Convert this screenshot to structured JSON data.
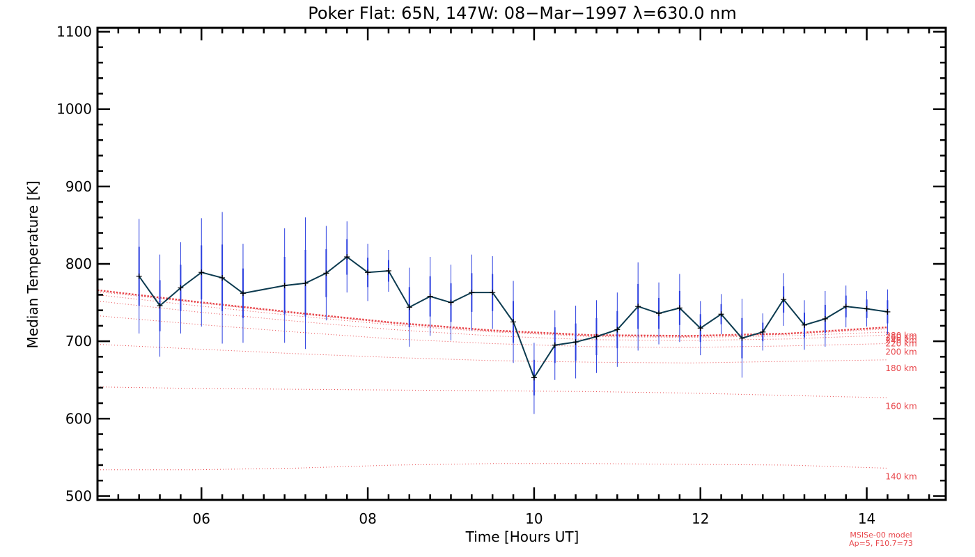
{
  "chart_data": {
    "type": "line",
    "title": "Poker Flat: 65N, 147W: 08−Mar−1997 λ=630.0 nm",
    "xlabel": "Time [Hours UT]",
    "ylabel": "Median Temperature [K]",
    "xlim": [
      4.75,
      14.95
    ],
    "ylim": [
      495,
      1105
    ],
    "x_ticks": [
      6,
      8,
      10,
      12,
      14
    ],
    "x_tick_labels": [
      "06",
      "08",
      "10",
      "12",
      "14"
    ],
    "y_ticks": [
      500,
      600,
      700,
      800,
      900,
      1000,
      1100
    ],
    "y_tick_labels": [
      "500",
      "600",
      "700",
      "800",
      "900",
      "1000",
      "1100"
    ],
    "series": [
      {
        "name": "Median Temperature",
        "color": "#0b3a4f",
        "error_color": "#2b3fe0",
        "points": [
          {
            "x": 5.25,
            "y": 784,
            "err_lo": 74,
            "err_hi": 74,
            "inner": 38
          },
          {
            "x": 5.5,
            "y": 746,
            "err_lo": 66,
            "err_hi": 66,
            "inner": 33
          },
          {
            "x": 5.75,
            "y": 769,
            "err_lo": 59,
            "err_hi": 59,
            "inner": 30
          },
          {
            "x": 6.0,
            "y": 789,
            "err_lo": 70,
            "err_hi": 70,
            "inner": 35
          },
          {
            "x": 6.25,
            "y": 782,
            "err_lo": 85,
            "err_hi": 85,
            "inner": 43
          },
          {
            "x": 6.5,
            "y": 762,
            "err_lo": 64,
            "err_hi": 64,
            "inner": 32
          },
          {
            "x": 7.0,
            "y": 772,
            "err_lo": 74,
            "err_hi": 74,
            "inner": 37
          },
          {
            "x": 7.25,
            "y": 775,
            "err_lo": 85,
            "err_hi": 85,
            "inner": 43
          },
          {
            "x": 7.5,
            "y": 788,
            "err_lo": 61,
            "err_hi": 61,
            "inner": 31
          },
          {
            "x": 7.75,
            "y": 809,
            "err_lo": 46,
            "err_hi": 46,
            "inner": 23
          },
          {
            "x": 8.0,
            "y": 789,
            "err_lo": 37,
            "err_hi": 37,
            "inner": 19
          },
          {
            "x": 8.25,
            "y": 791,
            "err_lo": 27,
            "err_hi": 27,
            "inner": 14
          },
          {
            "x": 8.5,
            "y": 744,
            "err_lo": 51,
            "err_hi": 51,
            "inner": 26
          },
          {
            "x": 8.75,
            "y": 758,
            "err_lo": 51,
            "err_hi": 51,
            "inner": 26
          },
          {
            "x": 9.0,
            "y": 750,
            "err_lo": 49,
            "err_hi": 49,
            "inner": 25
          },
          {
            "x": 9.25,
            "y": 763,
            "err_lo": 49,
            "err_hi": 49,
            "inner": 25
          },
          {
            "x": 9.5,
            "y": 763,
            "err_lo": 47,
            "err_hi": 47,
            "inner": 24
          },
          {
            "x": 9.75,
            "y": 725,
            "err_lo": 53,
            "err_hi": 53,
            "inner": 27
          },
          {
            "x": 10.0,
            "y": 653,
            "err_lo": 47,
            "err_hi": 45,
            "inner": 23
          },
          {
            "x": 10.25,
            "y": 695,
            "err_lo": 45,
            "err_hi": 45,
            "inner": 23
          },
          {
            "x": 10.5,
            "y": 699,
            "err_lo": 47,
            "err_hi": 47,
            "inner": 24
          },
          {
            "x": 10.75,
            "y": 706,
            "err_lo": 47,
            "err_hi": 47,
            "inner": 24
          },
          {
            "x": 11.0,
            "y": 715,
            "err_lo": 48,
            "err_hi": 48,
            "inner": 24
          },
          {
            "x": 11.25,
            "y": 745,
            "err_lo": 57,
            "err_hi": 57,
            "inner": 29
          },
          {
            "x": 11.5,
            "y": 736,
            "err_lo": 40,
            "err_hi": 40,
            "inner": 20
          },
          {
            "x": 11.75,
            "y": 743,
            "err_lo": 44,
            "err_hi": 44,
            "inner": 22
          },
          {
            "x": 12.0,
            "y": 717,
            "err_lo": 35,
            "err_hi": 35,
            "inner": 18
          },
          {
            "x": 12.25,
            "y": 735,
            "err_lo": 26,
            "err_hi": 26,
            "inner": 13
          },
          {
            "x": 12.5,
            "y": 704,
            "err_lo": 51,
            "err_hi": 51,
            "inner": 26
          },
          {
            "x": 12.75,
            "y": 712,
            "err_lo": 24,
            "err_hi": 24,
            "inner": 12
          },
          {
            "x": 13.0,
            "y": 754,
            "err_lo": 34,
            "err_hi": 34,
            "inner": 17
          },
          {
            "x": 13.25,
            "y": 721,
            "err_lo": 32,
            "err_hi": 32,
            "inner": 16
          },
          {
            "x": 13.5,
            "y": 729,
            "err_lo": 36,
            "err_hi": 36,
            "inner": 18
          },
          {
            "x": 13.75,
            "y": 745,
            "err_lo": 27,
            "err_hi": 27,
            "inner": 14
          },
          {
            "x": 14.0,
            "y": 742,
            "err_lo": 23,
            "err_hi": 23,
            "inner": 12
          },
          {
            "x": 14.25,
            "y": 738,
            "err_lo": 29,
            "err_hi": 29,
            "inner": 15
          }
        ]
      }
    ],
    "model": {
      "name": "MSISe-00 model",
      "params": "Ap=5, F10.7=73",
      "color": "#e8474c",
      "x_start": 4.75,
      "x_end": 14.25,
      "curves": [
        {
          "label": "140 km",
          "y": [
            534,
            534,
            536,
            540,
            542,
            542,
            541,
            540,
            536
          ]
        },
        {
          "label": "160 km",
          "y": [
            641,
            639,
            638,
            637,
            636,
            635,
            633,
            630,
            627
          ]
        },
        {
          "label": "180 km",
          "y": [
            696,
            690,
            684,
            679,
            675,
            673,
            672,
            674,
            676
          ]
        },
        {
          "label": "200 km",
          "y": [
            733,
            722,
            712,
            703,
            697,
            693,
            692,
            694,
            697
          ]
        },
        {
          "label": "220 km",
          "y": [
            752,
            738,
            726,
            715,
            707,
            702,
            701,
            703,
            708
          ]
        },
        {
          "label": "240 km",
          "y": [
            760,
            746,
            733,
            721,
            712,
            706,
            705,
            707,
            712
          ]
        },
        {
          "label": "260 km",
          "y": [
            764,
            750,
            736,
            723,
            713,
            707,
            706,
            709,
            716
          ]
        },
        {
          "label": "280 km",
          "y": [
            766,
            751,
            737,
            724,
            714,
            708,
            707,
            710,
            718
          ]
        }
      ]
    }
  }
}
